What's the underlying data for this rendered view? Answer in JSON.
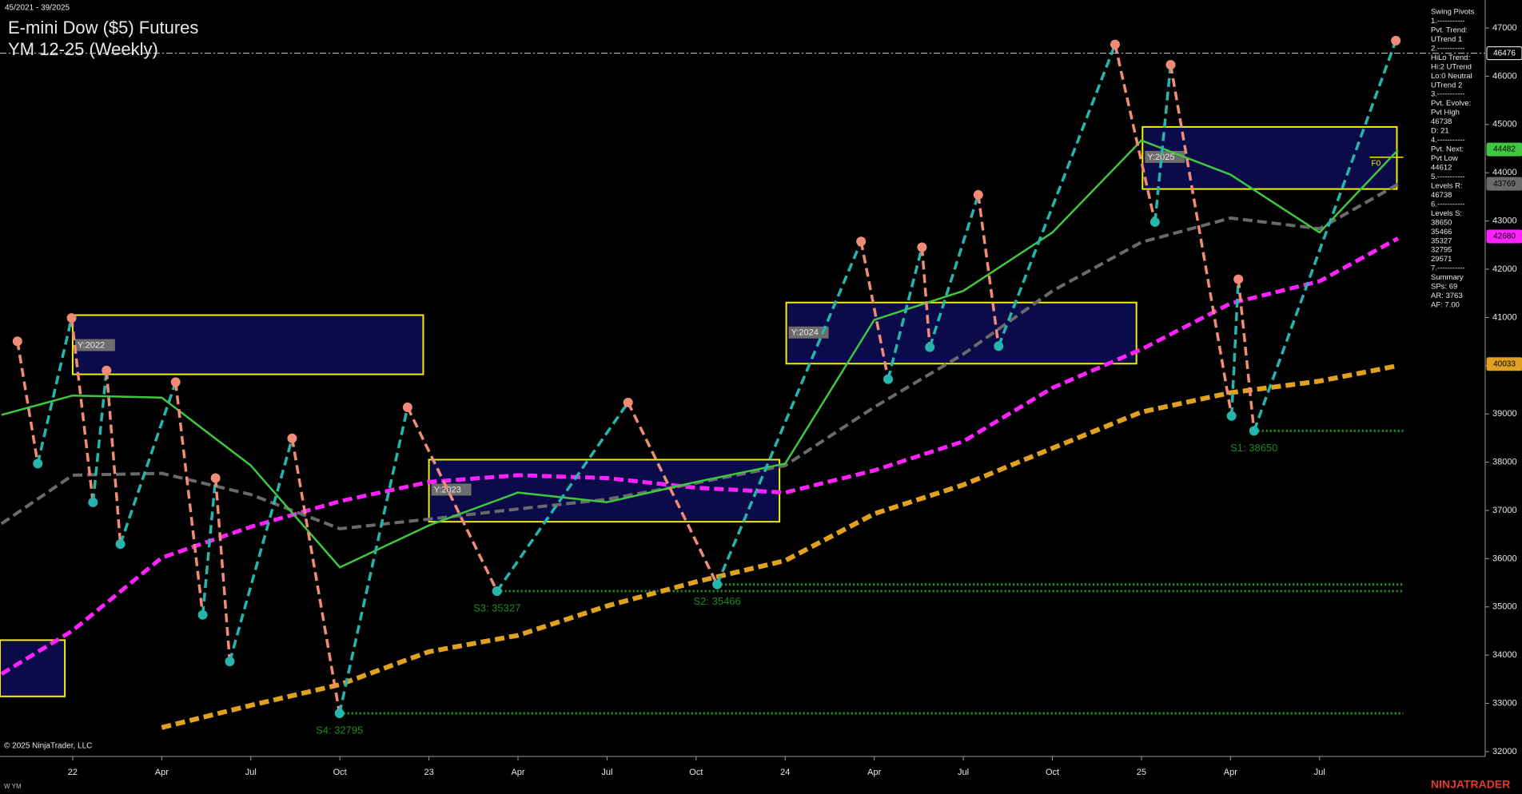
{
  "header": {
    "range": "45/2021 - 39/2025",
    "title": "E-mini Dow ($5) Futures",
    "subtitle": "YM 12-25 (Weekly)"
  },
  "footer": {
    "copyright": "© 2025 NinjaTrader, LLC",
    "instrument": "W YM",
    "brand": "NINJATRADER"
  },
  "info_panel": [
    "Swing Pivots",
    "1.-----------",
    "Pvt. Trend:",
    "UTrend 1",
    "2.-----------",
    "HiLo Trend:",
    "Hi:2 UTrend",
    "Lo:0 Neutral",
    "UTrend 2",
    "3.-----------",
    "Pvt. Evolve:",
    "Pvt High",
    "46738",
    "D: 21",
    "4.-----------",
    "Pvt. Next:",
    "Pvt Low",
    "44612",
    "5.-----------",
    "Levels R:",
    "46738",
    "6.-----------",
    "Levels S:",
    "38650",
    "35466",
    "35327",
    "32795",
    "29571",
    "7.-----------",
    "Summary",
    "SPs: 69",
    "AR: 3763",
    "AF: 7.00"
  ],
  "chart_data": {
    "type": "line",
    "xlim": [
      2021.796,
      2025.965
    ],
    "ylim": [
      31900,
      47580
    ],
    "yticks": [
      32000,
      33000,
      34000,
      35000,
      36000,
      37000,
      38000,
      39000,
      40000,
      41000,
      42000,
      43000,
      44000,
      45000,
      46000,
      47000
    ],
    "xticks": [
      {
        "value": 2022,
        "label": "22"
      },
      {
        "value": 2022.25,
        "label": "Apr"
      },
      {
        "value": 2022.5,
        "label": "Jul"
      },
      {
        "value": 2022.75,
        "label": "Oct"
      },
      {
        "value": 2023,
        "label": "23"
      },
      {
        "value": 2023.25,
        "label": "Apr"
      },
      {
        "value": 2023.5,
        "label": "Jul"
      },
      {
        "value": 2023.75,
        "label": "Oct"
      },
      {
        "value": 2024,
        "label": "24"
      },
      {
        "value": 2024.25,
        "label": "Apr"
      },
      {
        "value": 2024.5,
        "label": "Jul"
      },
      {
        "value": 2024.75,
        "label": "Oct"
      },
      {
        "value": 2025,
        "label": "25"
      },
      {
        "value": 2025.25,
        "label": "Apr"
      },
      {
        "value": 2025.5,
        "label": "Jul"
      }
    ],
    "x": [
      2021.8,
      2022.0,
      2022.25,
      2022.5,
      2022.75,
      2023.0,
      2023.25,
      2023.5,
      2023.75,
      2024.0,
      2024.25,
      2024.5,
      2024.75,
      2025.0,
      2025.25,
      2025.5,
      2025.72
    ],
    "series": [
      {
        "color": "#ff22ff",
        "dashed": true,
        "values": [
          33610,
          34510,
          36020,
          36660,
          37190,
          37590,
          37730,
          37670,
          37470,
          37370,
          37830,
          38430,
          39540,
          40340,
          41290,
          41750,
          42640
        ]
      },
      {
        "color": "#e0a020",
        "dashed": true,
        "values": [
          null,
          null,
          32500,
          32960,
          33390,
          34070,
          34410,
          35020,
          35520,
          35960,
          36930,
          37530,
          38290,
          39040,
          39440,
          39680,
          40000
        ]
      },
      {
        "color": "#6a6a6a",
        "dashed": true,
        "values": [
          36725,
          37730,
          37770,
          37330,
          36620,
          36820,
          37030,
          37230,
          37570,
          37930,
          39140,
          40240,
          41550,
          42560,
          43060,
          42840,
          43760
        ]
      },
      {
        "color": "#3fc83f",
        "dashed": false,
        "values": [
          38980,
          39380,
          39340,
          37930,
          35820,
          36690,
          37370,
          37170,
          37590,
          37970,
          40950,
          41550,
          42760,
          44670,
          43960,
          42760,
          44470
        ]
      }
    ],
    "pivots": {
      "up_color": "#26b5ad",
      "down_color": "#f08c76",
      "x": [
        2021.845,
        2021.902,
        2021.997,
        2022.057,
        2022.095,
        2022.134,
        2022.289,
        2022.365,
        2022.401,
        2022.441,
        2022.616,
        2022.749,
        2022.94,
        2023.191,
        2023.559,
        2023.809,
        2024.213,
        2024.289,
        2024.384,
        2024.406,
        2024.542,
        2024.599,
        2024.926,
        2025.038,
        2025.082,
        2025.253,
        2025.272,
        2025.316,
        2025.714
      ],
      "values": [
        40505,
        37970,
        40988,
        37167,
        39902,
        36302,
        39660,
        34834,
        37670,
        33869,
        38494,
        32795,
        39138,
        35327,
        39238,
        35466,
        42576,
        39720,
        42456,
        40384,
        43541,
        40404,
        46658,
        42978,
        46236,
        38957,
        41792,
        38650,
        46738
      ]
    },
    "boxes": [
      {
        "label": null,
        "x0": 2021.796,
        "x1": 2021.978,
        "high": 34311,
        "low": 33145
      },
      {
        "label": "Y:2022",
        "x0": 2022.0,
        "x1": 2022.984,
        "high": 41048,
        "low": 39821
      },
      {
        "label": "Y:2023",
        "x0": 2023.0,
        "x1": 2023.984,
        "high": 38052,
        "low": 36765
      },
      {
        "label": "Y:2024",
        "x0": 2024.003,
        "x1": 2024.986,
        "high": 41309,
        "low": 40042
      },
      {
        "label": "Y:2025",
        "x0": 2025.003,
        "x1": 2025.717,
        "high": 44949,
        "low": 43662,
        "note": "F0"
      }
    ],
    "box_color": "#f0f000",
    "levels_end": 2025.735,
    "levels": [
      {
        "label": "S1: 38650",
        "value": 38650,
        "start": 2025.316
      },
      {
        "label": "S2: 35466",
        "value": 35466,
        "start": 2023.809
      },
      {
        "label": "S3: 35327",
        "value": 35327,
        "start": 2023.191
      },
      {
        "label": "S4: 32795",
        "value": 32795,
        "start": 2022.749
      }
    ],
    "price_markers": [
      {
        "value": 46476,
        "color": "#000000",
        "line": true
      },
      {
        "value": 44482,
        "color": "#3fc83f"
      },
      {
        "value": 43769,
        "color": "#6a6a6a"
      },
      {
        "value": 42680,
        "color": "#ff22ff"
      },
      {
        "value": 40033,
        "color": "#e0a020"
      }
    ]
  }
}
